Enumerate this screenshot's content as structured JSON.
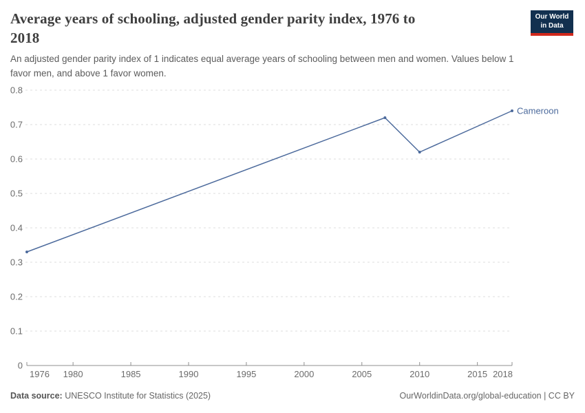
{
  "header": {
    "title_line1": "Average years of schooling, adjusted gender parity index, 1976 to",
    "title_line2": "2018",
    "subtitle": "An adjusted gender parity index of 1 indicates equal average years of schooling between men and women. Values below 1 favor men, and above 1 favor women.",
    "logo": {
      "line1": "Our World",
      "line2": "in Data"
    }
  },
  "footer": {
    "source_label": "Data source:",
    "source_value": "UNESCO Institute for Statistics (2025)",
    "attribution": "OurWorldinData.org/global-education | CC BY"
  },
  "colors": {
    "line": "#4c6a9c",
    "entity_label": "#4c6a9c",
    "gridline": "#dedede",
    "axis": "#8f8f8f",
    "tick_label": "#6b6b6b",
    "logo_navy": "#12304f",
    "logo_red": "#d0281c"
  },
  "chart_data": {
    "type": "line",
    "title": "Average years of schooling, adjusted gender parity index, 1976 to 2018",
    "xlabel": "",
    "ylabel": "",
    "xlim": [
      1976,
      2018
    ],
    "ylim": [
      0,
      0.8
    ],
    "x_ticks": [
      1976,
      1980,
      1985,
      1990,
      1995,
      2000,
      2005,
      2010,
      2015,
      2018
    ],
    "y_ticks": [
      0,
      0.1,
      0.2,
      0.3,
      0.4,
      0.5,
      0.6,
      0.7,
      0.8
    ],
    "grid": "dashed-horizontal",
    "legend_position": "end-of-line-label",
    "series": [
      {
        "name": "Cameroon",
        "color": "#4c6a9c",
        "points": [
          {
            "x": 1976,
            "y": 0.33
          },
          {
            "x": 2007,
            "y": 0.72
          },
          {
            "x": 2010,
            "y": 0.62
          },
          {
            "x": 2018,
            "y": 0.74
          }
        ]
      }
    ]
  }
}
